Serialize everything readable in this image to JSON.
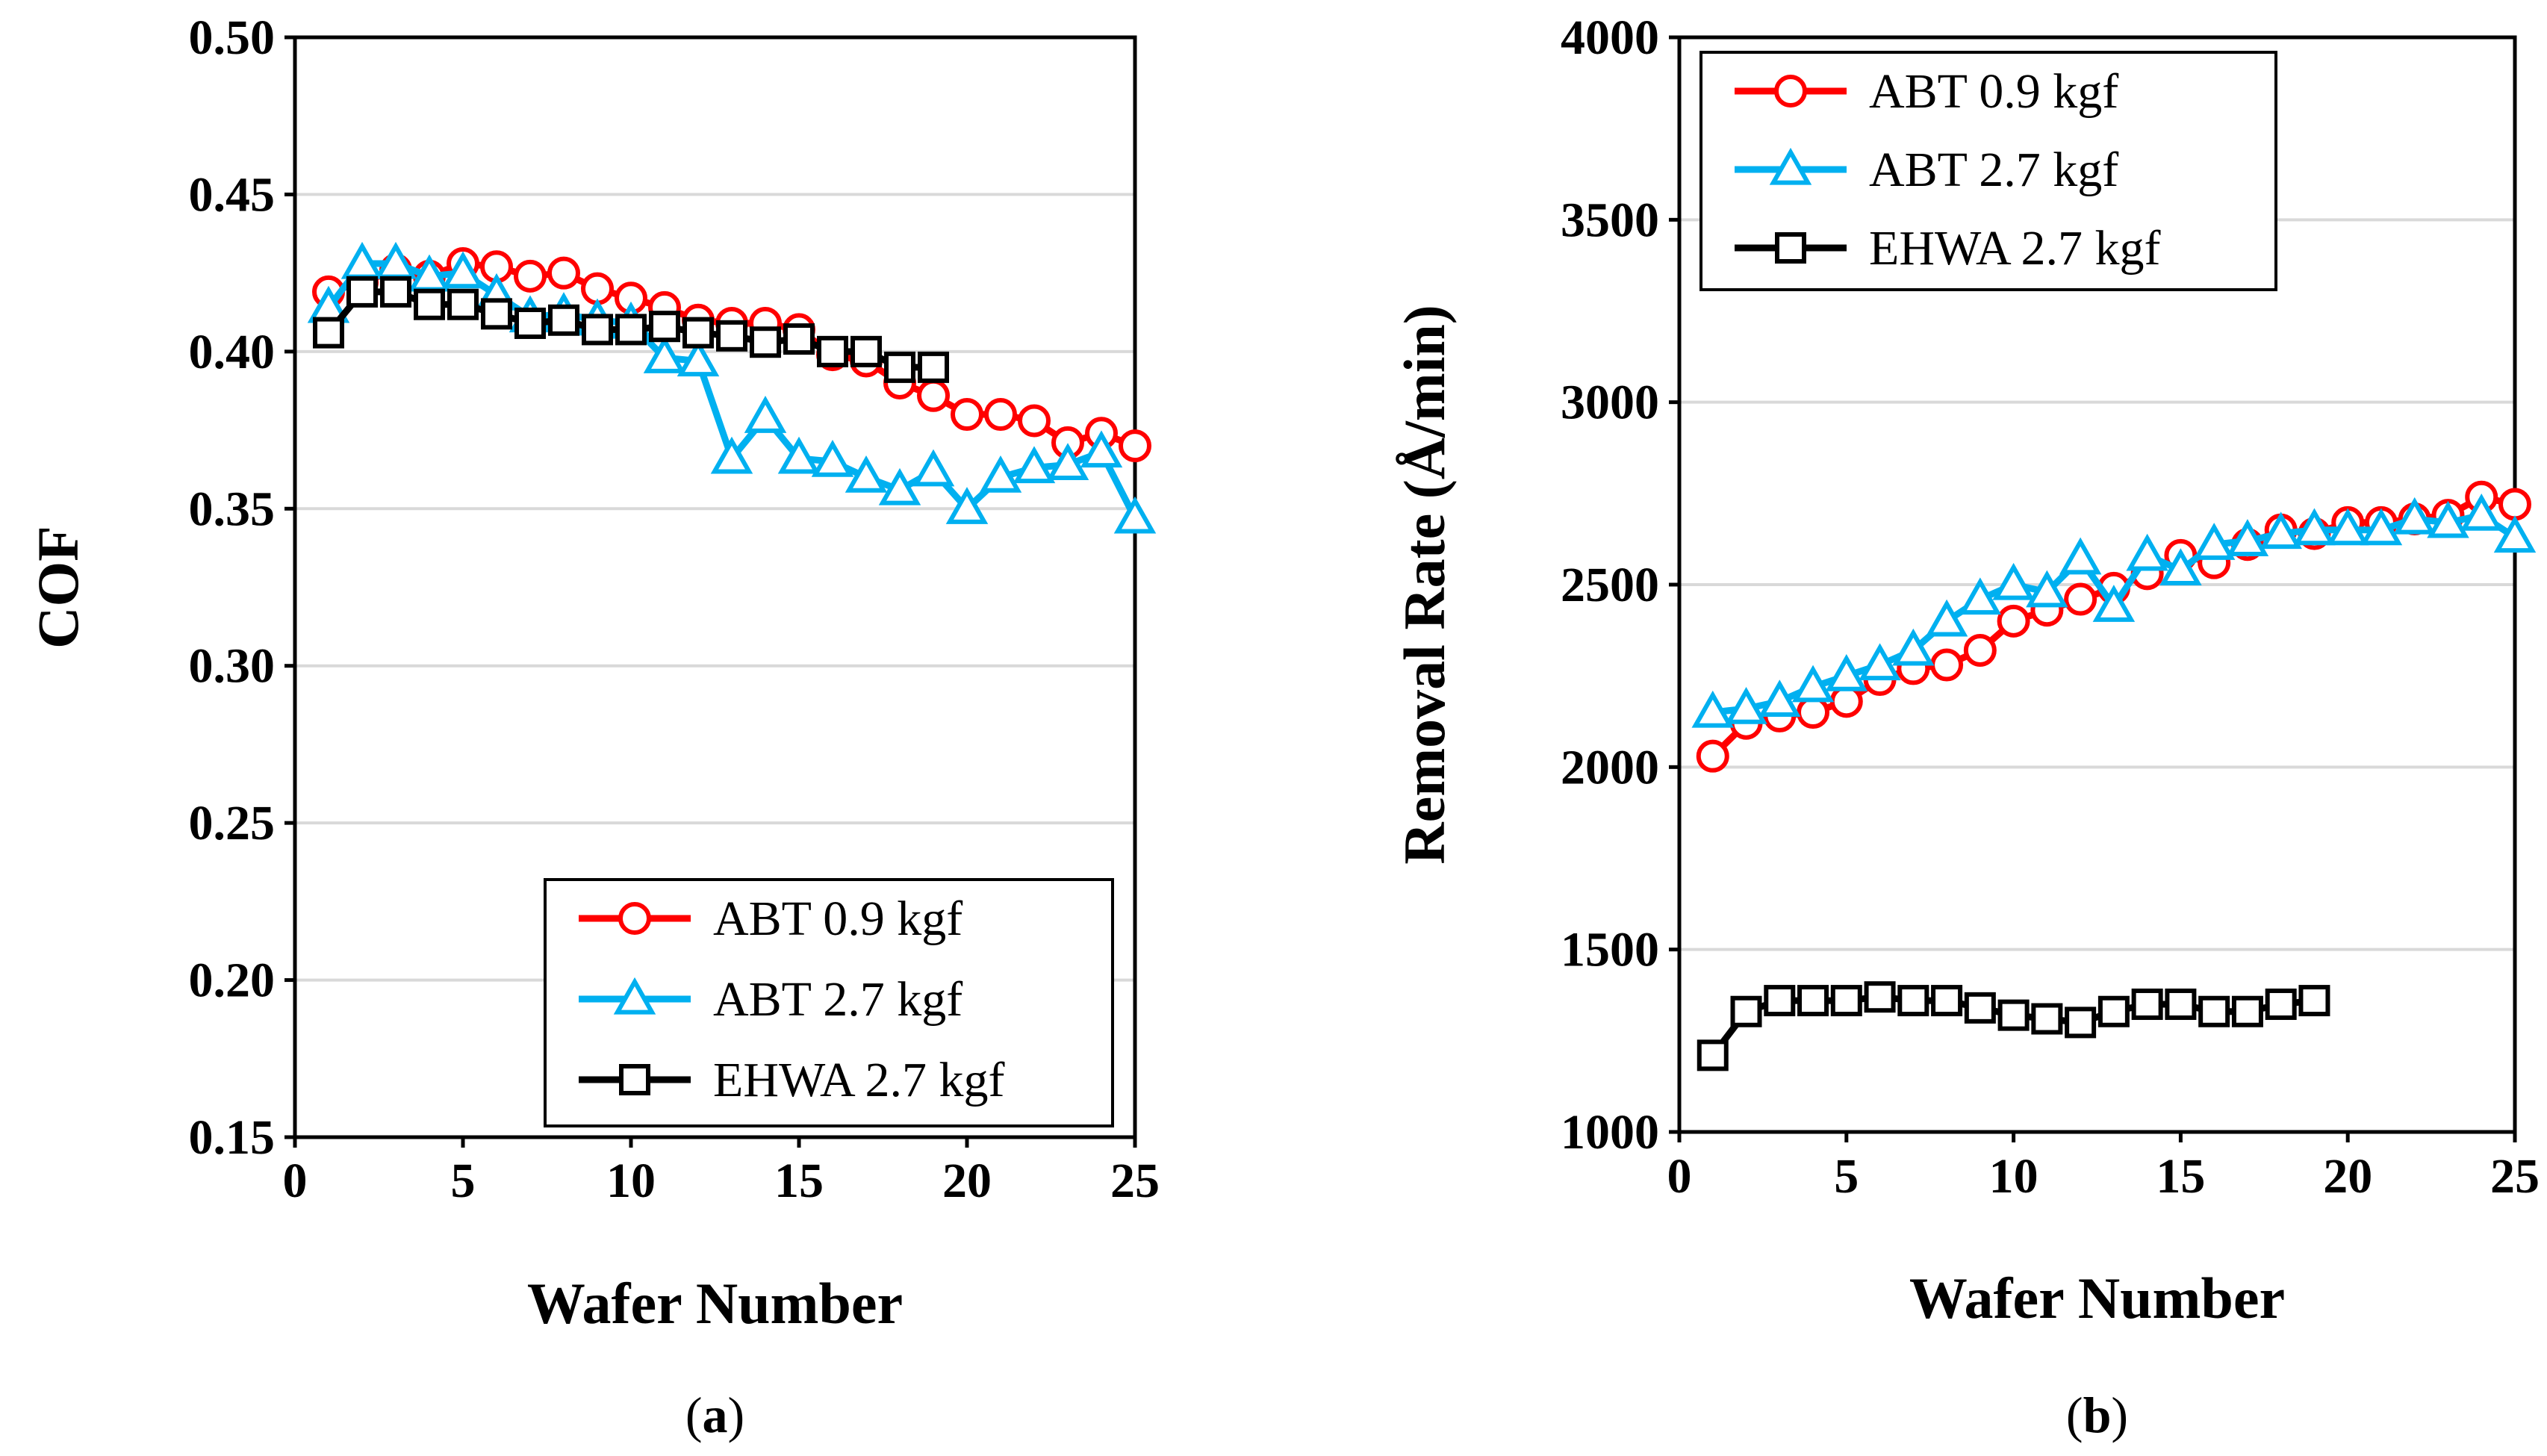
{
  "chart_data": [
    {
      "id": "a",
      "type": "line",
      "caption_letter": "a",
      "xlabel": "Wafer Number",
      "ylabel": "COF",
      "xlim": [
        0,
        25
      ],
      "ylim": [
        0.15,
        0.5
      ],
      "xticks": [
        0,
        5,
        10,
        15,
        20,
        25
      ],
      "yticks": [
        0.15,
        0.2,
        0.25,
        0.3,
        0.35,
        0.4,
        0.45,
        0.5
      ],
      "ytick_decimals": 2,
      "grid": true,
      "legend_position": "bottom-right",
      "series": [
        {
          "name": "ABT 0.9 kgf",
          "color": "#ff0000",
          "marker": "circle",
          "x": [
            1,
            2,
            3,
            4,
            5,
            6,
            7,
            8,
            9,
            10,
            11,
            12,
            13,
            14,
            15,
            16,
            17,
            18,
            19,
            20,
            21,
            22,
            23,
            24,
            25
          ],
          "y": [
            0.419,
            0.422,
            0.426,
            0.424,
            0.428,
            0.427,
            0.424,
            0.425,
            0.42,
            0.417,
            0.414,
            0.41,
            0.409,
            0.409,
            0.407,
            0.399,
            0.397,
            0.39,
            0.386,
            0.38,
            0.38,
            0.378,
            0.371,
            0.374,
            0.37
          ]
        },
        {
          "name": "ABT 2.7 kgf",
          "color": "#00b0f0",
          "marker": "triangle",
          "x": [
            1,
            2,
            3,
            4,
            5,
            6,
            7,
            8,
            9,
            10,
            11,
            12,
            13,
            14,
            15,
            16,
            17,
            18,
            19,
            20,
            21,
            22,
            23,
            24,
            25
          ],
          "y": [
            0.414,
            0.428,
            0.428,
            0.424,
            0.425,
            0.418,
            0.411,
            0.412,
            0.41,
            0.409,
            0.398,
            0.397,
            0.366,
            0.379,
            0.366,
            0.365,
            0.36,
            0.356,
            0.362,
            0.35,
            0.36,
            0.363,
            0.364,
            0.368,
            0.347
          ]
        },
        {
          "name": "EHWA 2.7 kgf",
          "color": "#000000",
          "marker": "square",
          "x": [
            1,
            2,
            3,
            4,
            5,
            6,
            7,
            8,
            9,
            10,
            11,
            12,
            13,
            14,
            15,
            16,
            17,
            18,
            19
          ],
          "y": [
            0.406,
            0.419,
            0.419,
            0.415,
            0.415,
            0.412,
            0.409,
            0.41,
            0.407,
            0.407,
            0.408,
            0.406,
            0.405,
            0.403,
            0.404,
            0.4,
            0.4,
            0.395,
            0.395
          ]
        }
      ]
    },
    {
      "id": "b",
      "type": "line",
      "caption_letter": "b",
      "xlabel": "Wafer Number",
      "ylabel": "Removal Rate (Å/min)",
      "xlim": [
        0,
        25
      ],
      "ylim": [
        1000,
        4000
      ],
      "xticks": [
        0,
        5,
        10,
        15,
        20,
        25
      ],
      "yticks": [
        1000,
        1500,
        2000,
        2500,
        3000,
        3500,
        4000
      ],
      "ytick_decimals": 0,
      "grid": true,
      "legend_position": "top-left",
      "series": [
        {
          "name": "ABT 0.9 kgf",
          "color": "#ff0000",
          "marker": "circle",
          "x": [
            1,
            2,
            3,
            4,
            5,
            6,
            7,
            8,
            9,
            10,
            11,
            12,
            13,
            14,
            15,
            16,
            17,
            18,
            19,
            20,
            21,
            22,
            23,
            24,
            25
          ],
          "y": [
            2030,
            2120,
            2140,
            2150,
            2180,
            2240,
            2270,
            2280,
            2320,
            2400,
            2430,
            2460,
            2490,
            2530,
            2580,
            2560,
            2610,
            2650,
            2640,
            2670,
            2670,
            2680,
            2690,
            2740,
            2720
          ]
        },
        {
          "name": "ABT 2.7 kgf",
          "color": "#00b0f0",
          "marker": "triangle",
          "x": [
            1,
            2,
            3,
            4,
            5,
            6,
            7,
            8,
            9,
            10,
            11,
            12,
            13,
            14,
            15,
            16,
            17,
            18,
            19,
            20,
            21,
            22,
            23,
            24,
            25
          ],
          "y": [
            2150,
            2160,
            2180,
            2220,
            2250,
            2280,
            2320,
            2400,
            2460,
            2500,
            2480,
            2570,
            2440,
            2580,
            2540,
            2610,
            2620,
            2640,
            2650,
            2650,
            2650,
            2680,
            2670,
            2690,
            2630
          ]
        },
        {
          "name": "EHWA 2.7 kgf",
          "color": "#000000",
          "marker": "square",
          "x": [
            1,
            2,
            3,
            4,
            5,
            6,
            7,
            8,
            9,
            10,
            11,
            12,
            13,
            14,
            15,
            16,
            17,
            18,
            19
          ],
          "y": [
            1210,
            1330,
            1360,
            1360,
            1360,
            1370,
            1360,
            1360,
            1340,
            1320,
            1310,
            1300,
            1330,
            1350,
            1350,
            1330,
            1330,
            1350,
            1360
          ]
        }
      ]
    }
  ]
}
